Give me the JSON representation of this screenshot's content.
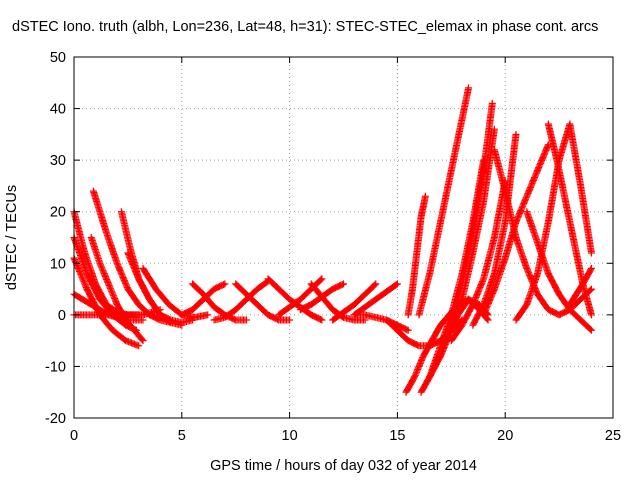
{
  "chart_data": {
    "type": "scatter",
    "title": "dSTEC Iono. truth (albh, Lon=236, Lat=48, h=31): STEC-STEC_elemax in phase cont. arcs",
    "xlabel": "GPS time / hours of day 032 of year 2014",
    "ylabel": "dSTEC  / TECUs",
    "xlim": [
      0,
      25
    ],
    "ylim": [
      -20,
      50
    ],
    "xticks": [
      0,
      5,
      10,
      15,
      20,
      25
    ],
    "yticks": [
      -20,
      -10,
      0,
      10,
      20,
      30,
      40,
      50
    ],
    "xtick_labels": [
      "0",
      "5",
      "10",
      "15",
      "20",
      "25"
    ],
    "ytick_labels": [
      "-20",
      "-10",
      "0",
      "10",
      "20",
      "30",
      "40",
      "50"
    ],
    "grid": true,
    "legend": "none",
    "marker": "plus",
    "color": "#ff0000",
    "arcs": [
      {
        "x": [
          0.0,
          0.5,
          1.0,
          1.5,
          2.0,
          2.5,
          3.0
        ],
        "y": [
          20,
          12,
          6,
          2,
          0.5,
          0,
          0
        ]
      },
      {
        "x": [
          0.0,
          0.6,
          1.2,
          1.8,
          2.4,
          2.9
        ],
        "y": [
          15,
          8,
          3,
          0,
          -2,
          -3
        ]
      },
      {
        "x": [
          0.0,
          0.6,
          1.2,
          1.8,
          2.4,
          3.0
        ],
        "y": [
          11,
          5,
          0,
          -3,
          -5,
          -6
        ]
      },
      {
        "x": [
          0.0,
          0.8,
          1.6,
          2.4,
          3.2
        ],
        "y": [
          4,
          2,
          0,
          -1,
          -1
        ]
      },
      {
        "x": [
          0.0,
          0.8,
          1.6,
          2.4,
          3.2,
          4.0
        ],
        "y": [
          0,
          0,
          0,
          0,
          0,
          1
        ]
      },
      {
        "x": [
          0.9,
          1.5,
          2.0,
          2.5,
          3.0,
          3.5,
          4.0,
          4.5
        ],
        "y": [
          24,
          16,
          10,
          5,
          2,
          0,
          -1,
          -1.5
        ]
      },
      {
        "x": [
          0.8,
          1.2,
          1.6,
          2.0,
          2.4,
          2.8,
          3.2
        ],
        "y": [
          15,
          10,
          6,
          2,
          -1,
          -3,
          -5
        ]
      },
      {
        "x": [
          2.2,
          2.6,
          3.0,
          3.5,
          4.0,
          4.5,
          5.0
        ],
        "y": [
          20,
          13,
          7,
          3,
          0,
          -1.5,
          -2
        ]
      },
      {
        "x": [
          2.5,
          3.0,
          3.5,
          4.0,
          4.5,
          5.0,
          5.5
        ],
        "y": [
          12,
          7,
          3,
          0,
          -1,
          -1.5,
          -1
        ]
      },
      {
        "x": [
          3.2,
          3.8,
          4.4,
          5.0,
          5.6,
          6.2
        ],
        "y": [
          9,
          5,
          2,
          0,
          -0.5,
          0
        ]
      },
      {
        "x": [
          5.0,
          5.5,
          6.0,
          6.5,
          7.0
        ],
        "y": [
          0,
          1,
          3,
          5,
          6
        ]
      },
      {
        "x": [
          5.5,
          6.0,
          6.5,
          7.0,
          7.5,
          8.0
        ],
        "y": [
          6,
          4,
          1.5,
          0,
          -1,
          -1
        ]
      },
      {
        "x": [
          6.5,
          7.0,
          7.5,
          8.0,
          8.5,
          9.0
        ],
        "y": [
          -1,
          -0.5,
          1,
          3,
          5,
          6.5
        ]
      },
      {
        "x": [
          7.5,
          8.0,
          8.5,
          9.0,
          9.5,
          10.0
        ],
        "y": [
          6,
          4,
          2,
          0,
          -1,
          -1
        ]
      },
      {
        "x": [
          9.0,
          9.5,
          10.0,
          10.5,
          11.0,
          11.5
        ],
        "y": [
          7,
          5,
          3,
          1.5,
          0,
          -1
        ]
      },
      {
        "x": [
          9.5,
          10.0,
          10.5,
          11.0,
          11.5
        ],
        "y": [
          0,
          1.5,
          3,
          5,
          7
        ]
      },
      {
        "x": [
          10.5,
          11.0,
          11.5,
          12.0,
          12.5
        ],
        "y": [
          1,
          2,
          3.5,
          5,
          6
        ]
      },
      {
        "x": [
          11.0,
          11.5,
          12.0,
          12.5,
          13.0,
          13.5
        ],
        "y": [
          6,
          3.5,
          1,
          -0.5,
          -1,
          -1
        ]
      },
      {
        "x": [
          12.0,
          12.5,
          13.0,
          13.5,
          14.0
        ],
        "y": [
          -1,
          0.5,
          2,
          4,
          6
        ]
      },
      {
        "x": [
          13.0,
          13.5,
          14.0,
          14.5,
          15.0
        ],
        "y": [
          0,
          1.5,
          3,
          4.5,
          6
        ]
      },
      {
        "x": [
          13.0,
          13.5,
          14.0,
          14.5,
          15.0,
          15.5
        ],
        "y": [
          0,
          0,
          -0.5,
          -1,
          -2,
          -3
        ]
      },
      {
        "x": [
          14.5,
          15.0,
          15.5,
          16.0,
          16.5,
          17.0,
          17.5,
          18.0
        ],
        "y": [
          -1,
          -3,
          -5,
          -6,
          -6,
          -5,
          -3,
          -1
        ]
      },
      {
        "x": [
          15.4,
          15.8,
          16.2,
          16.6,
          17.0,
          17.4,
          17.8,
          18.3,
          18.8,
          19.2
        ],
        "y": [
          -15,
          -12,
          -8,
          -5,
          -2,
          0,
          2,
          3,
          2,
          0
        ]
      },
      {
        "x": [
          15.5,
          15.7,
          15.9,
          16.1,
          16.3
        ],
        "y": [
          0,
          5,
          12,
          19,
          23
        ]
      },
      {
        "x": [
          16.1,
          16.5,
          17.0,
          17.4,
          17.8,
          18.3,
          18.8,
          19.2
        ],
        "y": [
          -15,
          -12,
          -8,
          -4,
          0,
          3,
          1,
          -1
        ]
      },
      {
        "x": [
          16.0,
          16.5,
          17.0,
          17.5,
          18.0,
          18.3
        ],
        "y": [
          0,
          8,
          18,
          28,
          38,
          44
        ]
      },
      {
        "x": [
          16.5,
          17.0,
          17.5,
          18.0,
          18.5,
          19.0
        ],
        "y": [
          -12,
          -6,
          0,
          8,
          18,
          30
        ]
      },
      {
        "x": [
          17.0,
          17.5,
          18.0,
          18.5,
          19.0,
          19.4
        ],
        "y": [
          -8,
          -2,
          6,
          16,
          28,
          41
        ]
      },
      {
        "x": [
          17.5,
          18.0,
          18.5,
          19.0,
          19.5
        ],
        "y": [
          -3,
          3,
          12,
          22,
          36
        ]
      },
      {
        "x": [
          17.5,
          18.0,
          18.5,
          19.0,
          19.5,
          20.0
        ],
        "y": [
          -5,
          -2,
          2,
          7,
          15,
          26
        ]
      },
      {
        "x": [
          18.5,
          19.0,
          19.5,
          20.0,
          20.5
        ],
        "y": [
          -2,
          2,
          8,
          18,
          35
        ]
      },
      {
        "x": [
          19.0,
          19.5,
          20.0,
          20.5,
          21.0,
          21.5,
          22.0
        ],
        "y": [
          0,
          5,
          11,
          18,
          23,
          28,
          33
        ]
      },
      {
        "x": [
          19.5,
          20.0,
          20.5,
          21.0,
          21.5,
          22.0,
          22.5,
          23.0,
          23.5,
          24.0
        ],
        "y": [
          32,
          24,
          15,
          9,
          4,
          1,
          0,
          1,
          3,
          5
        ]
      },
      {
        "x": [
          20.5,
          21.0,
          21.5,
          22.0,
          22.5,
          23.0,
          23.5,
          24.0
        ],
        "y": [
          -1,
          2,
          8,
          18,
          30,
          37,
          25,
          12
        ]
      },
      {
        "x": [
          22.0,
          22.4,
          22.8,
          23.2,
          23.6,
          24.0
        ],
        "y": [
          37,
          30,
          22,
          14,
          6,
          0
        ]
      },
      {
        "x": [
          21.0,
          21.5,
          22.0,
          22.5,
          23.0,
          23.5,
          24.0
        ],
        "y": [
          20,
          14,
          8,
          4,
          1,
          -1,
          -3
        ]
      },
      {
        "x": [
          23.0,
          23.3,
          23.6,
          24.0
        ],
        "y": [
          2,
          4,
          6,
          9
        ]
      }
    ]
  }
}
